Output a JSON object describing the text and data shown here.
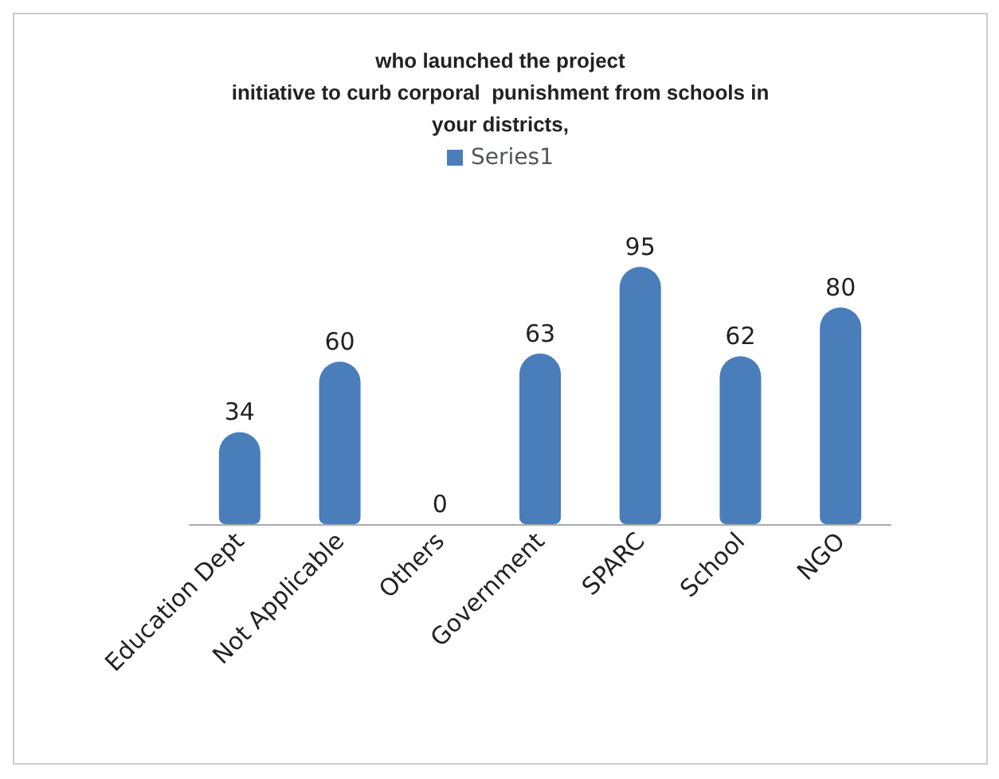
{
  "chart_data": {
    "type": "bar",
    "title": "who launched the project\ninitiative to curb corporal  punishment from schools in\nyour districts,",
    "categories": [
      "Education Dept",
      "Not Applicable",
      "Others",
      "Government",
      "SPARC",
      "School",
      "NGO"
    ],
    "series": [
      {
        "name": "Series1",
        "color": "#4a7ebb",
        "values": [
          34,
          60,
          0,
          63,
          95,
          62,
          80
        ]
      }
    ],
    "data_labels": true,
    "legend": "top"
  }
}
